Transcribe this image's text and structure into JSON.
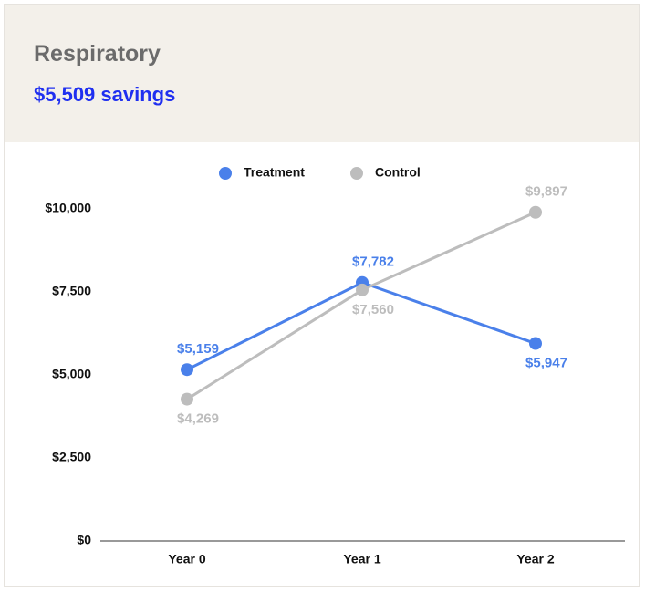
{
  "header": {
    "title": "Respiratory",
    "subtitle": "$5,509 savings"
  },
  "chart_data": {
    "type": "line",
    "categories": [
      "Year 0",
      "Year 1",
      "Year 2"
    ],
    "series": [
      {
        "name": "Treatment",
        "color": "#4a80ea",
        "values": [
          5159,
          7782,
          5947
        ],
        "value_labels": [
          "$5,159",
          "$7,782",
          "$5,947"
        ]
      },
      {
        "name": "Control",
        "color": "#bdbdbd",
        "values": [
          4269,
          7560,
          9897
        ],
        "value_labels": [
          "$4,269",
          "$7,560",
          "$9,897"
        ]
      }
    ],
    "ylim": [
      0,
      10000
    ],
    "yticks": [
      {
        "value": 0,
        "label": "$0"
      },
      {
        "value": 2500,
        "label": "$2,500"
      },
      {
        "value": 5000,
        "label": "$5,000"
      },
      {
        "value": 7500,
        "label": "$7,500"
      },
      {
        "value": 10000,
        "label": "$10,000"
      }
    ],
    "legend": "top"
  }
}
